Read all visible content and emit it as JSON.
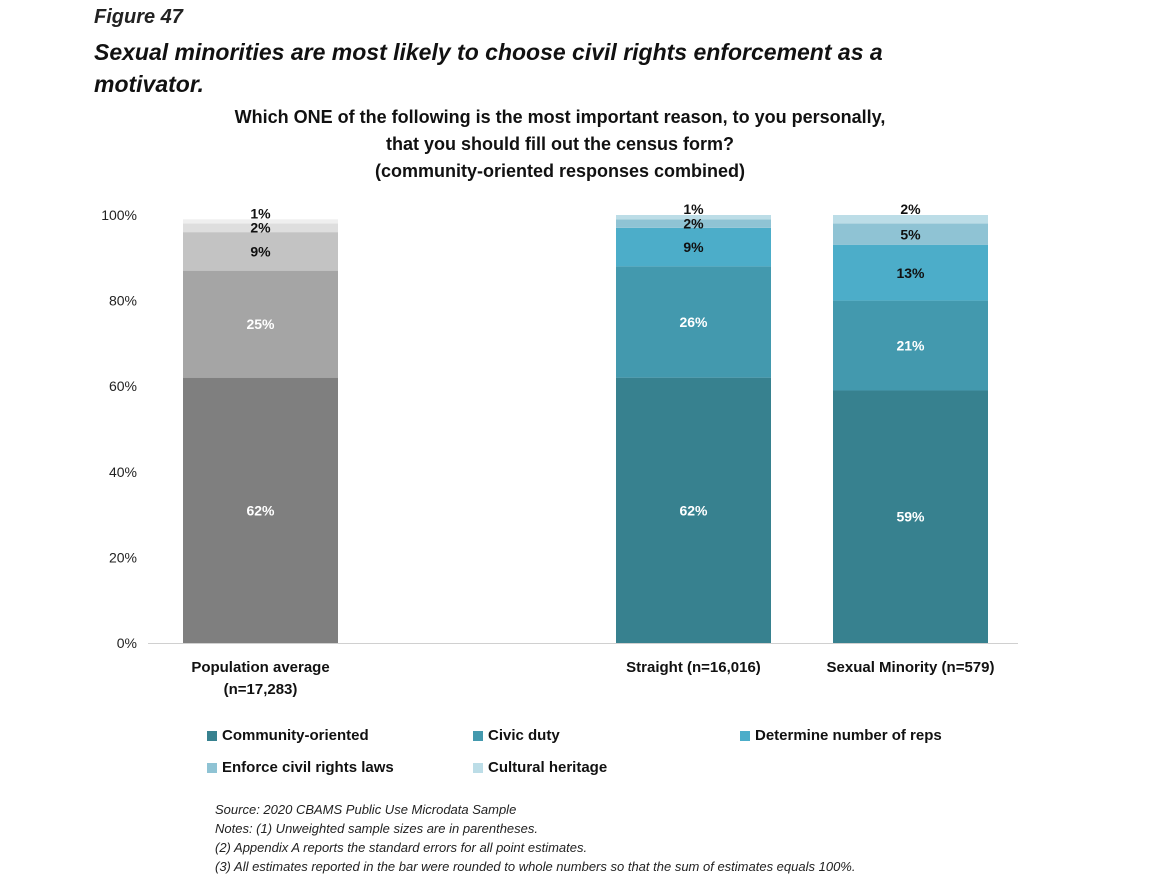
{
  "figure_label": "Figure 47",
  "figure_title": "Sexual minorities are most likely to choose civil rights enforcement as a motivator.",
  "question_lines": [
    "Which ONE of the following is the most important reason, to you personally,",
    "that you should fill out the census form?",
    "(community-oriented responses combined)"
  ],
  "chart_data": {
    "type": "bar",
    "stacked": true,
    "categories": [
      "Population average (n=17,283)",
      "Straight (n=16,016)",
      "Sexual Minority (n=579)"
    ],
    "category_label_lines": [
      [
        "Population average",
        "(n=17,283)"
      ],
      [
        "Straight (n=16,016)"
      ],
      [
        "Sexual Minority (n=579)"
      ]
    ],
    "series": [
      {
        "name": "Community-oriented",
        "values": [
          62,
          62,
          59
        ],
        "labels": [
          "62%",
          "62%",
          "59%"
        ]
      },
      {
        "name": "Civic duty",
        "values": [
          25,
          26,
          21
        ],
        "labels": [
          "25%",
          "26%",
          "21%"
        ]
      },
      {
        "name": "Determine number of reps",
        "values": [
          9,
          9,
          13
        ],
        "labels": [
          "9%",
          "9%",
          "13%"
        ]
      },
      {
        "name": "Enforce civil rights laws",
        "values": [
          2,
          2,
          5
        ],
        "labels": [
          "2%",
          "2%",
          "5%"
        ]
      },
      {
        "name": "Cultural heritage",
        "values": [
          1,
          1,
          2
        ],
        "labels": [
          "1%",
          "1%",
          "2%"
        ]
      }
    ],
    "colors": {
      "teal": [
        "#37818f",
        "#4399ae",
        "#4cadc9",
        "#8fc3d4",
        "#bcdde7"
      ],
      "gray": [
        "#7f7f7f",
        "#a5a5a5",
        "#c3c3c3",
        "#dedede",
        "#efefef"
      ]
    },
    "legend_colors": [
      "#37818f",
      "#4399ae",
      "#4cadc9",
      "#8fc3d4",
      "#bcdde7"
    ],
    "yticks": [
      "0%",
      "20%",
      "40%",
      "60%",
      "80%",
      "100%"
    ],
    "ylim": [
      0,
      100
    ],
    "grid": false,
    "legend_position": "bottom"
  },
  "notes": [
    "Source: 2020 CBAMS Public Use Microdata Sample",
    "Notes: (1) Unweighted sample sizes are in parentheses.",
    "(2) Appendix A reports the standard errors for all point estimates.",
    "(3) All estimates reported in the bar were rounded to whole numbers so that the sum of estimates equals 100%."
  ]
}
